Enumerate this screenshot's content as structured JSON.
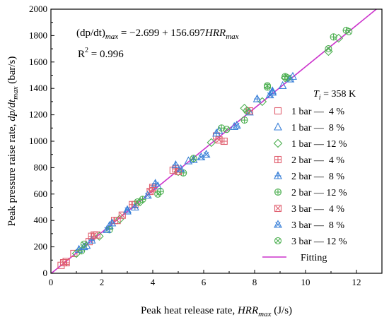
{
  "chart_data": {
    "type": "scatter",
    "xlabel_main": "Peak heat release rate, ",
    "xlabel_var": "HRR",
    "xlabel_sub": "max",
    "xlabel_unit": " (J/s)",
    "ylabel_main": "Peak pressure raise rate, ",
    "ylabel_var": "dp/dt",
    "ylabel_sub": "max",
    "ylabel_unit": " (bar/s)",
    "xlim": [
      0,
      13
    ],
    "ylim": [
      0,
      2000
    ],
    "x_ticks": [
      0,
      2,
      4,
      6,
      8,
      10,
      12
    ],
    "y_ticks": [
      0,
      200,
      400,
      600,
      800,
      1000,
      1200,
      1400,
      1600,
      1800,
      2000
    ],
    "equation": {
      "lhs": "(dp/dt)",
      "lhs_sub": "max",
      "mid": " = −2.699 + 156.697",
      "var": "HRR",
      "var_sub": "max",
      "r2_prefix": "R",
      "r2_sup": "2",
      "r2_suffix": " = 0.996"
    },
    "legend_title": {
      "var": "T",
      "sub": "i",
      "text": " = 358 K"
    },
    "legend_position": "right",
    "fit": {
      "intercept": -2.699,
      "slope": 156.697,
      "name": "Fitting",
      "color": "#cc33cc"
    },
    "series": [
      {
        "name": "1 bar —  4 %",
        "marker": "square",
        "color": "#e06070",
        "points": [
          [
            0.4,
            60
          ],
          [
            0.6,
            90
          ],
          [
            0.9,
            150
          ],
          [
            1.5,
            240
          ],
          [
            1.8,
            290
          ],
          [
            2.6,
            400
          ],
          [
            3.3,
            520
          ],
          [
            4.0,
            640
          ],
          [
            4.8,
            780
          ],
          [
            6.5,
            1040
          ]
        ]
      },
      {
        "name": "1 bar —  8 %",
        "marker": "triangle",
        "color": "#3a80d8",
        "points": [
          [
            1.4,
            210
          ],
          [
            2.3,
            360
          ],
          [
            3.0,
            470
          ],
          [
            4.2,
            660
          ],
          [
            5.4,
            850
          ],
          [
            6.6,
            1080
          ],
          [
            7.2,
            1110
          ],
          [
            7.8,
            1220
          ],
          [
            8.7,
            1370
          ],
          [
            9.1,
            1420
          ],
          [
            9.5,
            1490
          ]
        ]
      },
      {
        "name": "1 bar — 12 %",
        "marker": "diamond",
        "color": "#4caf50",
        "points": [
          [
            1.0,
            150
          ],
          [
            1.9,
            280
          ],
          [
            2.7,
            410
          ],
          [
            3.5,
            540
          ],
          [
            5.0,
            770
          ],
          [
            6.3,
            990
          ],
          [
            7.6,
            1250
          ],
          [
            8.3,
            1300
          ],
          [
            9.2,
            1480
          ],
          [
            10.9,
            1680
          ],
          [
            11.3,
            1780
          ]
        ]
      },
      {
        "name": "2 bar —  4 %",
        "marker": "square-plus",
        "color": "#e06070",
        "points": [
          [
            0.6,
            80
          ],
          [
            1.6,
            280
          ],
          [
            2.5,
            400
          ],
          [
            3.2,
            520
          ],
          [
            4.0,
            650
          ],
          [
            4.9,
            790
          ],
          [
            6.8,
            1000
          ],
          [
            7.8,
            1230
          ]
        ]
      },
      {
        "name": "2 bar —  8 %",
        "marker": "triangle-plus",
        "color": "#3a80d8",
        "points": [
          [
            1.1,
            180
          ],
          [
            1.6,
            250
          ],
          [
            2.4,
            380
          ],
          [
            3.3,
            500
          ],
          [
            4.1,
            680
          ],
          [
            4.9,
            820
          ],
          [
            5.6,
            860
          ],
          [
            6.5,
            1060
          ],
          [
            8.1,
            1320
          ],
          [
            8.7,
            1380
          ]
        ]
      },
      {
        "name": "2 bar — 12 %",
        "marker": "circle-plus",
        "color": "#4caf50",
        "points": [
          [
            1.2,
            170
          ],
          [
            2.3,
            330
          ],
          [
            3.6,
            560
          ],
          [
            4.3,
            620
          ],
          [
            5.2,
            760
          ],
          [
            6.7,
            1100
          ],
          [
            7.6,
            1160
          ],
          [
            8.5,
            1410
          ],
          [
            9.2,
            1490
          ],
          [
            11.1,
            1790
          ],
          [
            11.6,
            1840
          ]
        ]
      },
      {
        "name": "3 bar —  4 %",
        "marker": "square-x",
        "color": "#e06070",
        "points": [
          [
            0.5,
            80
          ],
          [
            1.7,
            290
          ],
          [
            2.8,
            440
          ],
          [
            3.9,
            620
          ],
          [
            5.0,
            770
          ],
          [
            6.6,
            1010
          ]
        ]
      },
      {
        "name": "3 bar —  8 %",
        "marker": "triangle-x",
        "color": "#3a80d8",
        "points": [
          [
            1.3,
            200
          ],
          [
            2.2,
            330
          ],
          [
            3.0,
            480
          ],
          [
            3.8,
            590
          ],
          [
            5.1,
            790
          ],
          [
            5.9,
            880
          ],
          [
            6.1,
            900
          ],
          [
            7.3,
            1120
          ],
          [
            8.6,
            1350
          ],
          [
            9.4,
            1470
          ]
        ]
      },
      {
        "name": "3 bar — 12 %",
        "marker": "circle-x",
        "color": "#4caf50",
        "points": [
          [
            1.3,
            220
          ],
          [
            3.4,
            540
          ],
          [
            4.2,
            600
          ],
          [
            5.6,
            870
          ],
          [
            6.9,
            1090
          ],
          [
            7.7,
            1230
          ],
          [
            8.5,
            1420
          ],
          [
            9.3,
            1480
          ],
          [
            10.9,
            1700
          ],
          [
            11.7,
            1830
          ]
        ]
      }
    ]
  }
}
